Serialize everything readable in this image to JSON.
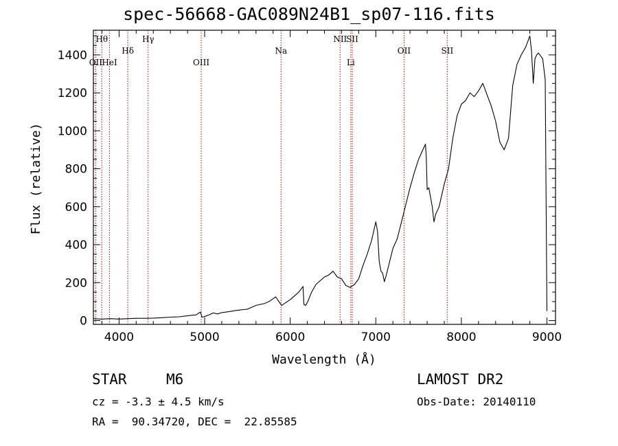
{
  "title": "spec-56668-GAC089N24B1_sp07-116.fits",
  "info": {
    "class_label": "STAR",
    "subclass": "M6",
    "survey": "LAMOST DR2",
    "redshift_line": "cz = -3.3 ± 4.5 km/s",
    "obs_date": "Obs-Date: 20140110",
    "coords": "RA =  90.34720, DEC =  22.85585"
  },
  "chart_data": {
    "type": "line",
    "title": "spec-56668-GAC089N24B1_sp07-116.fits",
    "xlabel": "Wavelength (Å)",
    "ylabel": "Flux (relative)",
    "xlim": [
      3700,
      9100
    ],
    "ylim": [
      -20,
      1530
    ],
    "x_ticks": [
      4000,
      5000,
      6000,
      7000,
      8000,
      9000
    ],
    "y_ticks": [
      0,
      200,
      400,
      600,
      800,
      1000,
      1200,
      1400
    ],
    "series": [
      {
        "x": [
          3700,
          3800,
          3900,
          4000,
          4100,
          4200,
          4300,
          4400,
          4500,
          4600,
          4700,
          4800,
          4850,
          4900,
          4950,
          4970,
          4990,
          5050,
          5100,
          5150,
          5200,
          5250,
          5300,
          5350,
          5400,
          5450,
          5500,
          5550,
          5600,
          5650,
          5700,
          5750,
          5800,
          5830,
          5860,
          5900,
          5950,
          6000,
          6050,
          6100,
          6150,
          6160,
          6180,
          6200,
          6250,
          6300,
          6350,
          6400,
          6450,
          6500,
          6550,
          6600,
          6650,
          6700,
          6750,
          6800,
          6850,
          6900,
          6950,
          7000,
          7020,
          7040,
          7060,
          7080,
          7100,
          7120,
          7150,
          7200,
          7250,
          7300,
          7350,
          7400,
          7450,
          7500,
          7550,
          7580,
          7590,
          7600,
          7620,
          7640,
          7660,
          7680,
          7700,
          7720,
          7740,
          7760,
          7800,
          7850,
          7900,
          7950,
          8000,
          8050,
          8100,
          8150,
          8200,
          8250,
          8300,
          8350,
          8400,
          8450,
          8500,
          8550,
          8600,
          8650,
          8700,
          8750,
          8800,
          8820,
          8840,
          8860,
          8880,
          8900,
          8950,
          8980,
          9000
        ],
        "y": [
          10,
          8,
          10,
          8,
          10,
          12,
          12,
          13,
          15,
          18,
          20,
          25,
          28,
          30,
          45,
          18,
          20,
          30,
          40,
          35,
          42,
          45,
          48,
          52,
          55,
          58,
          60,
          70,
          80,
          85,
          90,
          100,
          115,
          125,
          105,
          80,
          95,
          110,
          130,
          150,
          180,
          85,
          80,
          95,
          150,
          190,
          210,
          230,
          240,
          260,
          230,
          220,
          185,
          175,
          190,
          220,
          290,
          350,
          420,
          520,
          470,
          310,
          260,
          250,
          205,
          235,
          290,
          380,
          430,
          520,
          610,
          700,
          780,
          850,
          900,
          930,
          860,
          690,
          700,
          650,
          600,
          520,
          560,
          580,
          600,
          640,
          720,
          800,
          960,
          1080,
          1140,
          1160,
          1200,
          1180,
          1210,
          1250,
          1190,
          1130,
          1050,
          940,
          900,
          960,
          1240,
          1350,
          1400,
          1440,
          1500,
          1420,
          1250,
          1380,
          1400,
          1410,
          1380,
          1270,
          50
        ]
      }
    ],
    "line_colors": {
      "spectrum": "#000000",
      "marker": "#cc0000",
      "axes": "#000000"
    },
    "spectral_lines": [
      {
        "label": "Hθ",
        "x": 3798,
        "row": "top"
      },
      {
        "label": "OII",
        "x": 3727,
        "row": "bottom"
      },
      {
        "label": "HeI",
        "x": 3889,
        "row": "bottom"
      },
      {
        "label": "Hδ",
        "x": 4102,
        "row": "middle"
      },
      {
        "label": "Hγ",
        "x": 4340,
        "row": "top"
      },
      {
        "label": "OIII",
        "x": 4960,
        "row": "bottom"
      },
      {
        "label": "Na",
        "x": 5893,
        "row": "middle"
      },
      {
        "label": "NII",
        "x": 6583,
        "row": "top"
      },
      {
        "label": "Li",
        "x": 6708,
        "row": "bottom"
      },
      {
        "label": "SII",
        "x": 6725,
        "row": "top"
      },
      {
        "label": "OII",
        "x": 7330,
        "row": "middle"
      },
      {
        "label": "SII",
        "x": 7835,
        "row": "middle"
      }
    ]
  }
}
